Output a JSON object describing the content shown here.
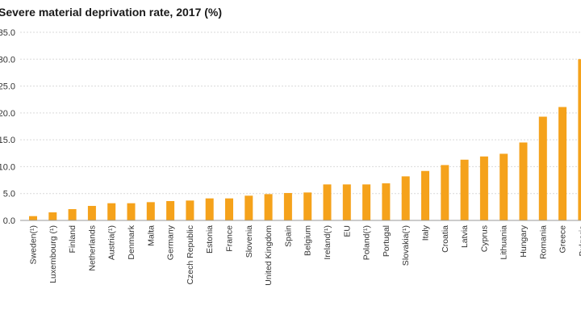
{
  "chart_data": {
    "type": "bar",
    "title": "Severe material deprivation rate, 2017 (%)",
    "xlabel": "",
    "ylabel": "",
    "ylim": [
      0,
      35
    ],
    "yticks": [
      "0.0",
      "5.0",
      "10.0",
      "15.0",
      "20.0",
      "25.0",
      "30.0",
      "35.0"
    ],
    "ytick_values": [
      0,
      5,
      10,
      15,
      20,
      25,
      30,
      35
    ],
    "grid": true,
    "bar_color": "#f5a21b",
    "categories": [
      "Sweden(¹)",
      "Luxembourg (¹)",
      "Finland",
      "Netherlands",
      "Austria(¹)",
      "Denmark",
      "Malta",
      "Germany",
      "Czech Republic",
      "Estonia",
      "France",
      "Slovenia",
      "United Kingdom",
      "Spain",
      "Belgium",
      "Ireland(¹)",
      "EU",
      "Poland(¹)",
      "Portugal",
      "Slovakia(¹)",
      "Italy",
      "Croatia",
      "Latvia",
      "Cyprus",
      "Lithuania",
      "Hungary",
      "Romania",
      "Greece",
      "Bulgaria"
    ],
    "values": [
      0.8,
      1.5,
      2.1,
      2.7,
      3.2,
      3.2,
      3.4,
      3.6,
      3.7,
      4.1,
      4.1,
      4.6,
      4.9,
      5.1,
      5.2,
      6.7,
      6.7,
      6.7,
      6.9,
      8.2,
      9.2,
      10.3,
      11.3,
      11.9,
      12.4,
      14.5,
      19.3,
      21.1,
      30.0
    ]
  }
}
